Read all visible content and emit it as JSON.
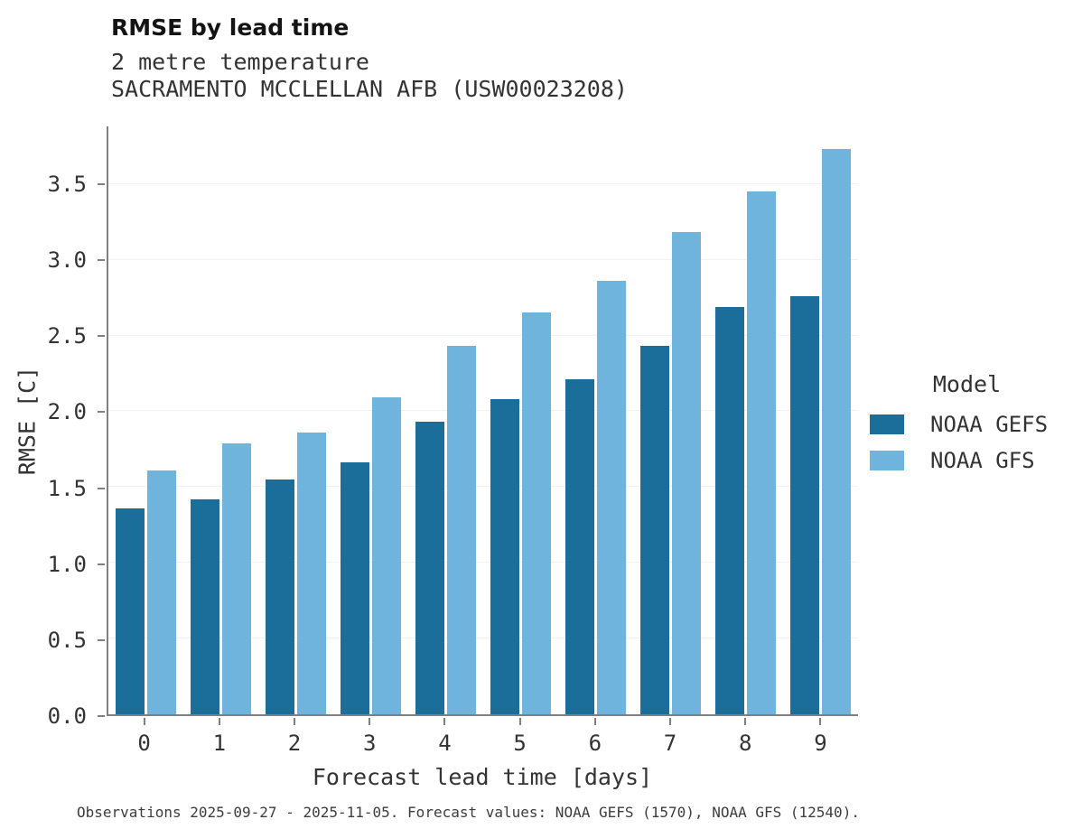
{
  "header": {
    "title": "RMSE by lead time",
    "subtitle1": "2 metre temperature",
    "subtitle2": "SACRAMENTO MCCLELLAN AFB (USW00023208)"
  },
  "legend": {
    "title": "Model"
  },
  "caption": "Observations 2025-09-27 - 2025-11-05. Forecast values: NOAA GEFS (1570), NOAA GFS (12540).",
  "colors": {
    "noaa_gefs": "#1b6e9a",
    "noaa_gfs": "#6fb4dc",
    "axis": "#7f7f7f"
  },
  "chart_data": {
    "type": "bar",
    "title": "RMSE by lead time",
    "subtitle": [
      "2 metre temperature",
      "SACRAMENTO MCCLELLAN AFB (USW00023208)"
    ],
    "xlabel": "Forecast lead time [days]",
    "ylabel": "RMSE [C]",
    "categories": [
      "0",
      "1",
      "2",
      "3",
      "4",
      "5",
      "6",
      "7",
      "8",
      "9"
    ],
    "series": [
      {
        "name": "NOAA GEFS",
        "color": "#1b6e9a",
        "values": [
          1.36,
          1.42,
          1.55,
          1.66,
          1.93,
          2.08,
          2.21,
          2.43,
          2.69,
          2.76
        ]
      },
      {
        "name": "NOAA GFS",
        "color": "#6fb4dc",
        "values": [
          1.61,
          1.79,
          1.86,
          2.09,
          2.43,
          2.65,
          2.86,
          3.18,
          3.45,
          3.73
        ]
      }
    ],
    "ylim": [
      0,
      3.88
    ],
    "yticks": [
      0.0,
      0.5,
      1.0,
      1.5,
      2.0,
      2.5,
      3.0,
      3.5
    ],
    "grid": true,
    "legend_position": "right",
    "legend_title": "Model",
    "caption": "Observations 2025-09-27 - 2025-11-05. Forecast values: NOAA GEFS (1570), NOAA GFS (12540)."
  }
}
